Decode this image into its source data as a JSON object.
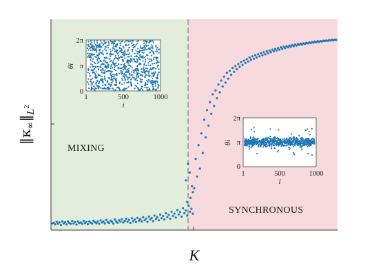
{
  "chart_data": {
    "type": "scatter",
    "xlabel": "K",
    "ylabel": "‖κ∞‖L²",
    "ylabel_parts": {
      "norm": "‖κ",
      "sub": "∞",
      "norm_close": "‖",
      "space": "L",
      "power": "2"
    },
    "regions": [
      {
        "label": "MIXING",
        "color": "#e2eedb"
      },
      {
        "label": "SYNCHRONOUS",
        "color": "#f6dadd"
      }
    ],
    "series": [
      {
        "color": "#1f77b4",
        "points": [
          [
            0.0,
            0.02
          ],
          [
            0.005,
            0.024
          ],
          [
            0.01,
            0.015
          ],
          [
            0.015,
            0.028
          ],
          [
            0.02,
            0.018
          ],
          [
            0.025,
            0.025
          ],
          [
            0.03,
            0.012
          ],
          [
            0.035,
            0.03
          ],
          [
            0.04,
            0.02
          ],
          [
            0.045,
            0.026
          ],
          [
            0.05,
            0.015
          ],
          [
            0.055,
            0.03
          ],
          [
            0.06,
            0.022
          ],
          [
            0.065,
            0.018
          ],
          [
            0.07,
            0.032
          ],
          [
            0.075,
            0.02
          ],
          [
            0.08,
            0.027
          ],
          [
            0.085,
            0.014
          ],
          [
            0.09,
            0.03
          ],
          [
            0.095,
            0.022
          ],
          [
            0.1,
            0.025
          ],
          [
            0.105,
            0.018
          ],
          [
            0.11,
            0.033
          ],
          [
            0.115,
            0.021
          ],
          [
            0.12,
            0.028
          ],
          [
            0.125,
            0.016
          ],
          [
            0.13,
            0.03
          ],
          [
            0.135,
            0.024
          ],
          [
            0.14,
            0.019
          ],
          [
            0.145,
            0.034
          ],
          [
            0.15,
            0.026
          ],
          [
            0.155,
            0.021
          ],
          [
            0.16,
            0.03
          ],
          [
            0.165,
            0.018
          ],
          [
            0.17,
            0.036
          ],
          [
            0.175,
            0.025
          ],
          [
            0.18,
            0.03
          ],
          [
            0.185,
            0.02
          ],
          [
            0.19,
            0.038
          ],
          [
            0.195,
            0.027
          ],
          [
            0.2,
            0.023
          ],
          [
            0.205,
            0.034
          ],
          [
            0.21,
            0.028
          ],
          [
            0.215,
            0.019
          ],
          [
            0.22,
            0.04
          ],
          [
            0.225,
            0.03
          ],
          [
            0.23,
            0.024
          ],
          [
            0.235,
            0.036
          ],
          [
            0.24,
            0.029
          ],
          [
            0.245,
            0.042
          ],
          [
            0.25,
            0.025
          ],
          [
            0.255,
            0.033
          ],
          [
            0.26,
            0.044
          ],
          [
            0.265,
            0.028
          ],
          [
            0.27,
            0.038
          ],
          [
            0.275,
            0.023
          ],
          [
            0.28,
            0.046
          ],
          [
            0.285,
            0.031
          ],
          [
            0.29,
            0.04
          ],
          [
            0.295,
            0.027
          ],
          [
            0.3,
            0.048
          ],
          [
            0.305,
            0.034
          ],
          [
            0.31,
            0.042
          ],
          [
            0.315,
            0.03
          ],
          [
            0.32,
            0.052
          ],
          [
            0.325,
            0.036
          ],
          [
            0.33,
            0.045
          ],
          [
            0.335,
            0.028
          ],
          [
            0.34,
            0.055
          ],
          [
            0.345,
            0.04
          ],
          [
            0.35,
            0.048
          ],
          [
            0.355,
            0.032
          ],
          [
            0.36,
            0.06
          ],
          [
            0.365,
            0.043
          ],
          [
            0.37,
            0.052
          ],
          [
            0.375,
            0.036
          ],
          [
            0.38,
            0.065
          ],
          [
            0.385,
            0.047
          ],
          [
            0.39,
            0.058
          ],
          [
            0.395,
            0.04
          ],
          [
            0.4,
            0.072
          ],
          [
            0.405,
            0.052
          ],
          [
            0.41,
            0.064
          ],
          [
            0.415,
            0.044
          ],
          [
            0.42,
            0.08
          ],
          [
            0.425,
            0.058
          ],
          [
            0.43,
            0.07
          ],
          [
            0.435,
            0.05
          ],
          [
            0.44,
            0.088
          ],
          [
            0.445,
            0.066
          ],
          [
            0.45,
            0.078
          ],
          [
            0.455,
            0.055
          ],
          [
            0.46,
            0.098
          ],
          [
            0.465,
            0.072
          ],
          [
            0.47,
            0.086
          ],
          [
            0.475,
            0.06
          ],
          [
            0.48,
            0.11
          ],
          [
            0.485,
            0.08
          ],
          [
            0.49,
            0.095
          ],
          [
            0.495,
            0.07
          ],
          [
            0.478,
            0.325
          ],
          [
            0.484,
            0.28
          ],
          [
            0.47,
            0.24
          ],
          [
            0.492,
            0.21
          ],
          [
            0.487,
            0.15
          ],
          [
            0.475,
            0.13
          ],
          [
            0.495,
            0.18
          ],
          [
            0.5,
            0.2
          ],
          [
            0.505,
            0.35
          ],
          [
            0.51,
            0.26
          ],
          [
            0.515,
            0.42
          ],
          [
            0.52,
            0.3
          ],
          [
            0.525,
            0.48
          ],
          [
            0.53,
            0.38
          ],
          [
            0.535,
            0.55
          ],
          [
            0.54,
            0.46
          ],
          [
            0.545,
            0.6
          ],
          [
            0.55,
            0.52
          ],
          [
            0.555,
            0.64
          ],
          [
            0.56,
            0.58
          ],
          [
            0.565,
            0.68
          ],
          [
            0.57,
            0.62
          ],
          [
            0.575,
            0.7
          ],
          [
            0.58,
            0.66
          ],
          [
            0.585,
            0.73
          ],
          [
            0.59,
            0.69
          ],
          [
            0.595,
            0.75
          ],
          [
            0.6,
            0.72
          ],
          [
            0.605,
            0.77
          ],
          [
            0.61,
            0.74
          ],
          [
            0.615,
            0.79
          ],
          [
            0.62,
            0.76
          ],
          [
            0.625,
            0.8
          ],
          [
            0.63,
            0.78
          ],
          [
            0.635,
            0.815
          ],
          [
            0.64,
            0.795
          ],
          [
            0.645,
            0.825
          ],
          [
            0.65,
            0.808
          ],
          [
            0.655,
            0.835
          ],
          [
            0.66,
            0.82
          ],
          [
            0.665,
            0.845
          ],
          [
            0.67,
            0.83
          ],
          [
            0.675,
            0.852
          ],
          [
            0.68,
            0.84
          ],
          [
            0.685,
            0.86
          ],
          [
            0.69,
            0.848
          ],
          [
            0.695,
            0.868
          ],
          [
            0.7,
            0.856
          ],
          [
            0.705,
            0.874
          ],
          [
            0.71,
            0.862
          ],
          [
            0.715,
            0.88
          ],
          [
            0.72,
            0.868
          ],
          [
            0.725,
            0.885
          ],
          [
            0.73,
            0.874
          ],
          [
            0.735,
            0.89
          ],
          [
            0.74,
            0.88
          ],
          [
            0.745,
            0.895
          ],
          [
            0.75,
            0.884
          ],
          [
            0.755,
            0.9
          ],
          [
            0.76,
            0.89
          ],
          [
            0.765,
            0.904
          ],
          [
            0.77,
            0.895
          ],
          [
            0.775,
            0.908
          ],
          [
            0.78,
            0.9
          ],
          [
            0.785,
            0.912
          ],
          [
            0.79,
            0.904
          ],
          [
            0.795,
            0.916
          ],
          [
            0.8,
            0.908
          ],
          [
            0.805,
            0.92
          ],
          [
            0.81,
            0.912
          ],
          [
            0.815,
            0.923
          ],
          [
            0.82,
            0.916
          ],
          [
            0.825,
            0.926
          ],
          [
            0.83,
            0.92
          ],
          [
            0.835,
            0.929
          ],
          [
            0.84,
            0.923
          ],
          [
            0.845,
            0.932
          ],
          [
            0.85,
            0.926
          ],
          [
            0.855,
            0.934
          ],
          [
            0.86,
            0.929
          ],
          [
            0.865,
            0.937
          ],
          [
            0.87,
            0.932
          ],
          [
            0.875,
            0.939
          ],
          [
            0.88,
            0.934
          ],
          [
            0.885,
            0.941
          ],
          [
            0.89,
            0.937
          ],
          [
            0.895,
            0.943
          ],
          [
            0.9,
            0.94
          ],
          [
            0.905,
            0.945
          ],
          [
            0.91,
            0.942
          ],
          [
            0.915,
            0.947
          ],
          [
            0.92,
            0.944
          ],
          [
            0.925,
            0.949
          ],
          [
            0.93,
            0.946
          ],
          [
            0.935,
            0.951
          ],
          [
            0.94,
            0.948
          ],
          [
            0.945,
            0.952
          ],
          [
            0.95,
            0.95
          ],
          [
            0.955,
            0.954
          ],
          [
            0.96,
            0.952
          ],
          [
            0.965,
            0.955
          ],
          [
            0.97,
            0.953
          ],
          [
            0.975,
            0.957
          ],
          [
            0.98,
            0.955
          ],
          [
            0.985,
            0.958
          ],
          [
            0.99,
            0.956
          ],
          [
            0.995,
            0.959
          ],
          [
            1.0,
            0.958
          ]
        ]
      }
    ],
    "insets": [
      {
        "region": "mixing",
        "ylabel": "θi",
        "yticks": [
          "0",
          "π",
          "2π"
        ],
        "xticks": [
          "1",
          "500",
          "1000"
        ],
        "xlabel": "i",
        "distribution": "uniform"
      },
      {
        "region": "synchronous",
        "ylabel": "θi",
        "yticks": [
          "0",
          "π",
          "2π"
        ],
        "xticks": [
          "1",
          "500",
          "1000"
        ],
        "xlabel": "i",
        "distribution": "clustered-near-pi"
      }
    ]
  }
}
